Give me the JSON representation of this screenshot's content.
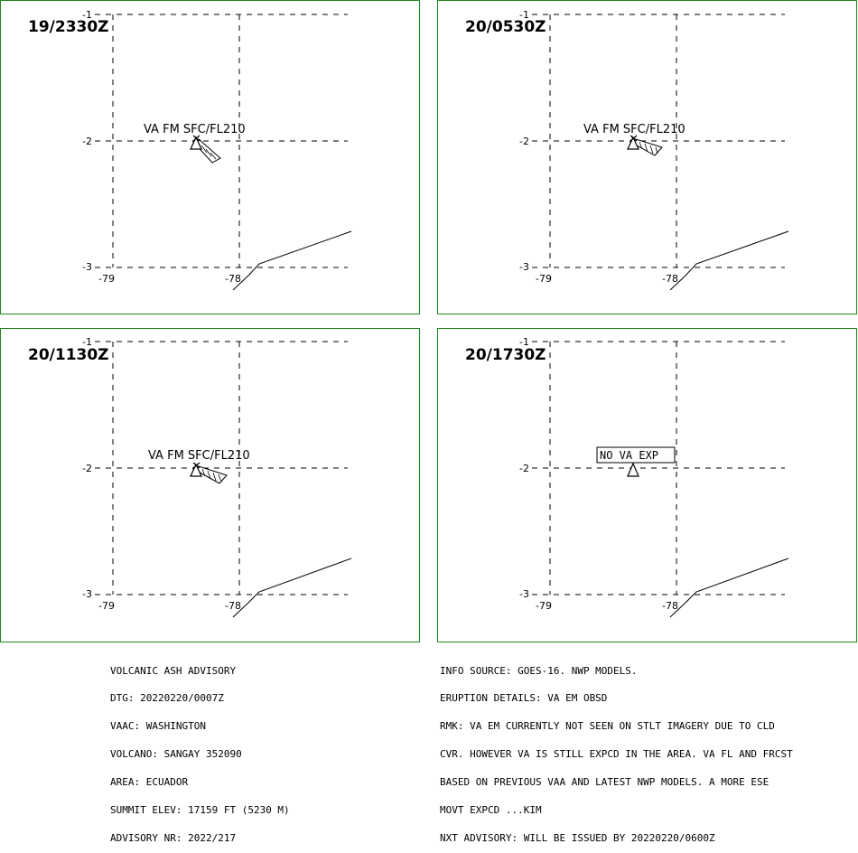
{
  "panels": [
    {
      "time": "19/2330Z",
      "label": "VA FM SFC/FL210",
      "no_va": null,
      "plume": "small"
    },
    {
      "time": "20/0530Z",
      "label": "VA FM SFC/FL210",
      "no_va": null,
      "plume": "wide"
    },
    {
      "time": "20/1130Z",
      "label": "VA FM SFC/FL210",
      "no_va": null,
      "plume": "wider"
    },
    {
      "time": "20/1730Z",
      "label": null,
      "no_va": "NO VA EXP",
      "plume": "none"
    }
  ],
  "grid": {
    "lat_labels": [
      "-1",
      "-2",
      "-3"
    ],
    "lon_labels": [
      "-79",
      "-78"
    ]
  },
  "advisory_left": [
    "VOLCANIC ASH ADVISORY",
    "DTG: 20220220/0007Z",
    "VAAC: WASHINGTON",
    "VOLCANO: SANGAY 352090",
    "AREA: ECUADOR",
    "SUMMIT ELEV: 17159 FT (5230 M)",
    "ADVISORY NR: 2022/217"
  ],
  "advisory_right": [
    "INFO SOURCE: GOES-16. NWP MODELS.",
    "ERUPTION DETAILS: VA EM OBSD",
    "RMK: VA EM CURRENTLY NOT SEEN ON STLT IMAGERY DUE TO CLD",
    "CVR. HOWEVER VA IS STILL EXPCD IN THE AREA. VA FL AND FRCST",
    "BASED ON PREVIOUS VAA AND LATEST NWP MODELS. A MORE ESE",
    "MOVT EXPCD ...KIM",
    "NXT ADVISORY: WILL BE ISSUED BY 20220220/0600Z"
  ],
  "colors": {
    "frame": "#1b8a1b"
  }
}
